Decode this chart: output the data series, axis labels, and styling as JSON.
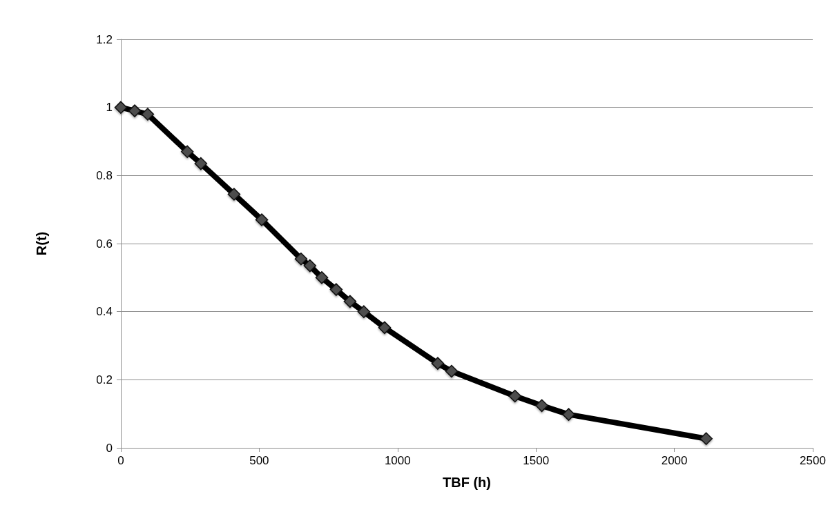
{
  "chart_data": {
    "type": "line",
    "xlabel": "TBF (h)",
    "ylabel": "R(t)",
    "x": [
      0,
      50,
      97,
      240,
      289,
      409,
      509,
      651,
      683,
      726,
      778,
      828,
      878,
      953,
      1145,
      1195,
      1424,
      1521,
      1618,
      2115
    ],
    "series": [
      {
        "color": "#000000",
        "values": [
          1.0,
          0.99,
          0.98,
          0.87,
          0.835,
          0.745,
          0.67,
          0.555,
          0.535,
          0.5,
          0.465,
          0.43,
          0.4,
          0.353,
          0.248,
          0.225,
          0.152,
          0.124,
          0.098,
          0.027
        ]
      }
    ],
    "xlim": [
      0,
      2500
    ],
    "xticks": [
      0,
      500,
      1000,
      1500,
      2000,
      2500
    ],
    "ylim": [
      0,
      1.2
    ],
    "yticks": [
      0,
      0.2,
      0.4,
      0.6,
      0.8,
      1,
      1.2
    ],
    "grid": "y",
    "marker": "diamond",
    "line_style": "solid"
  }
}
